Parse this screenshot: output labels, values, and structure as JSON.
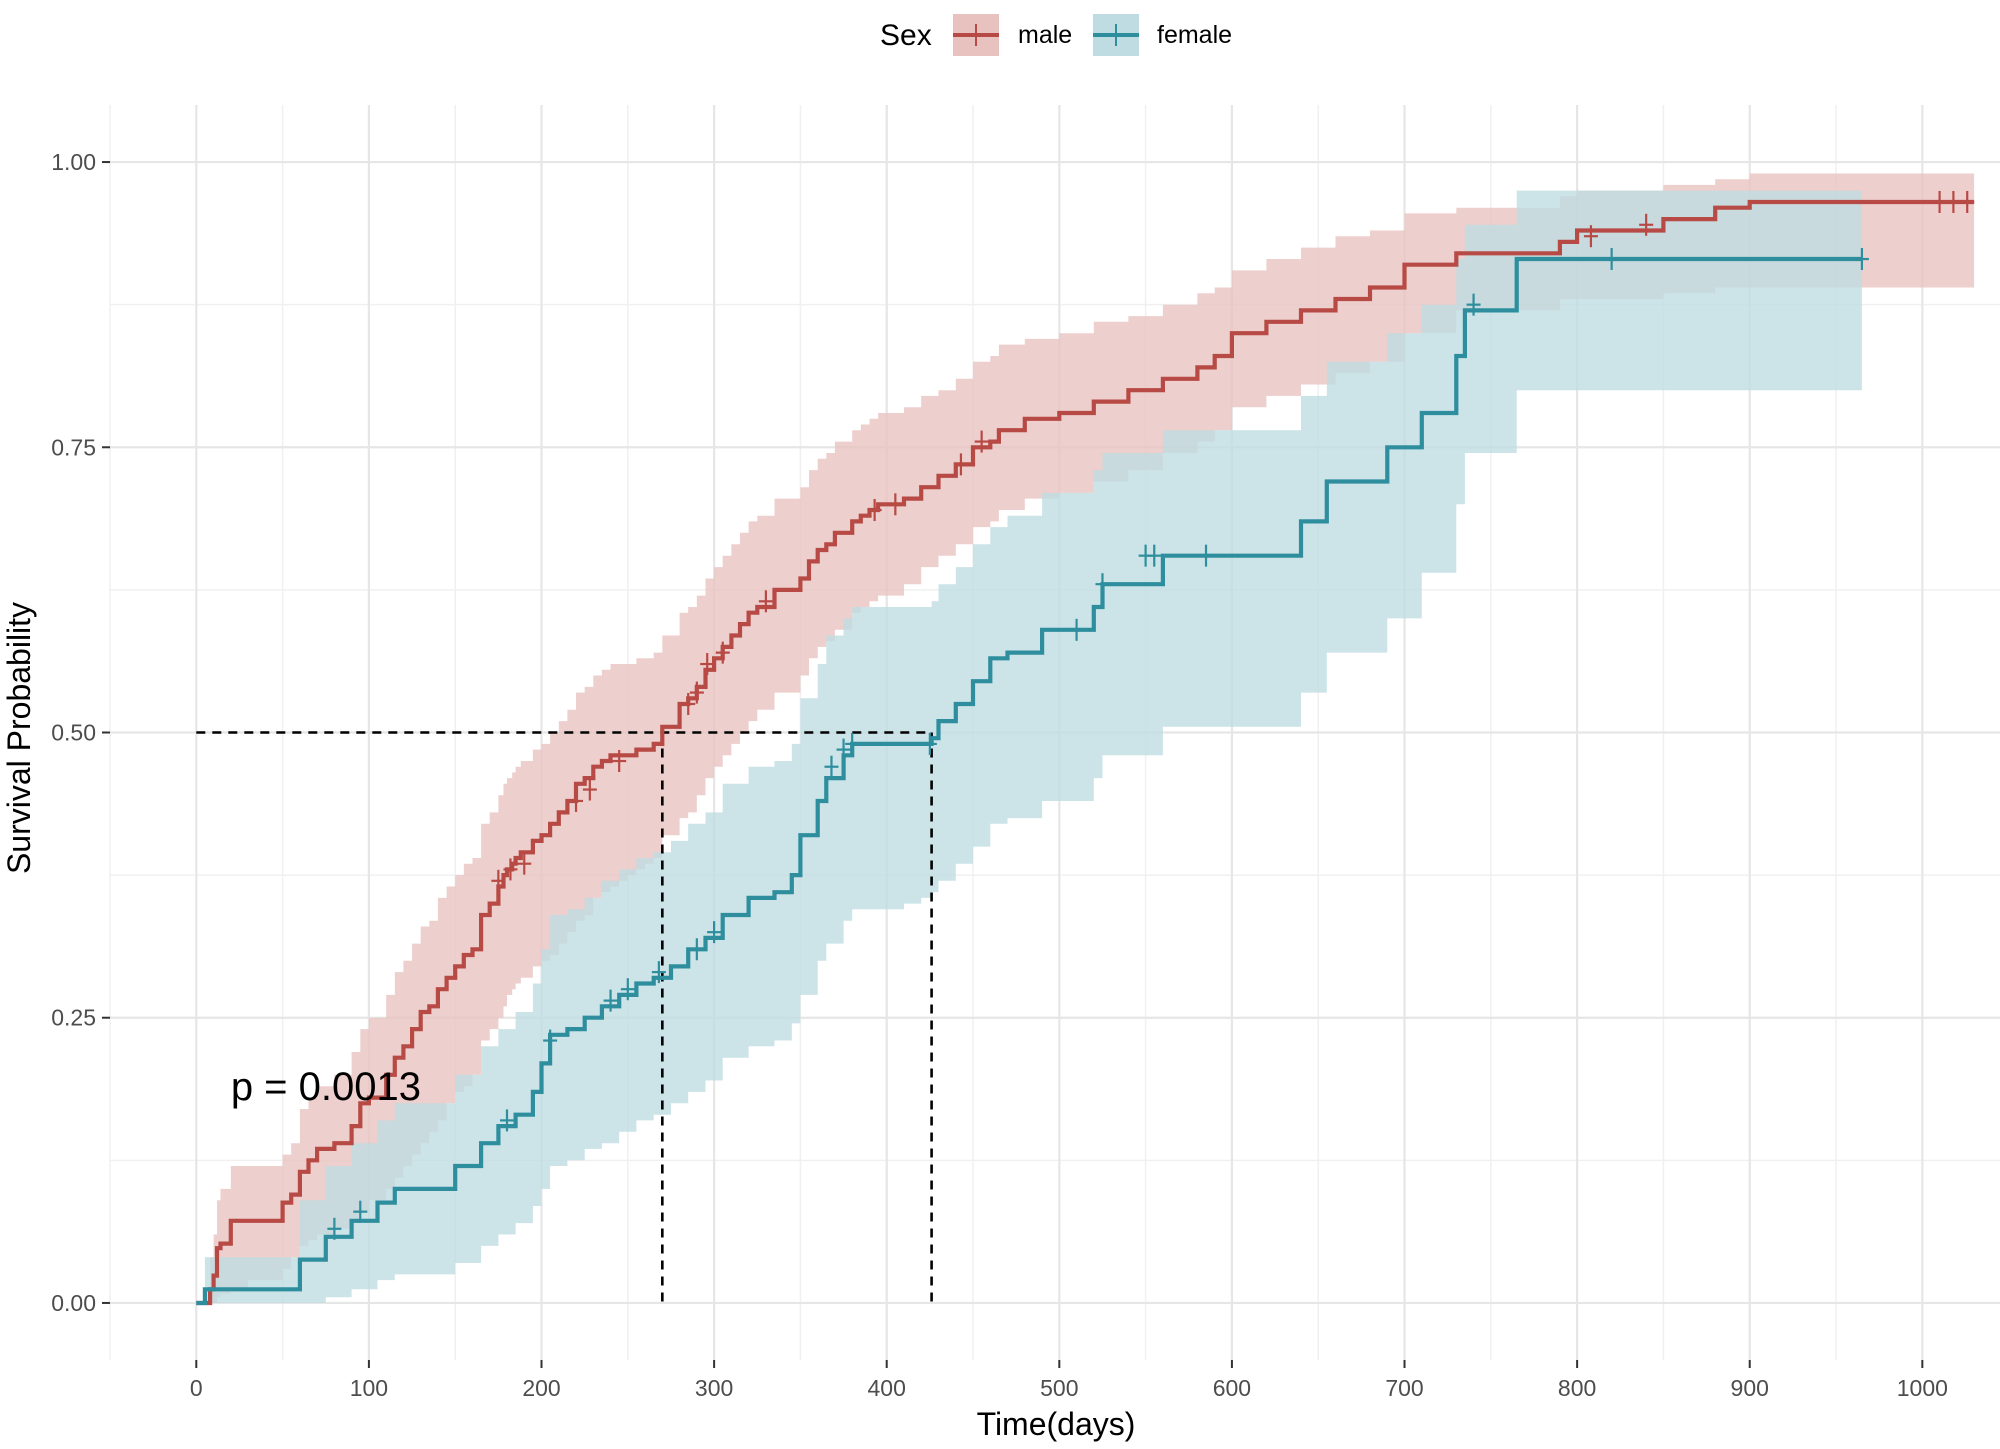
{
  "chart_data": {
    "type": "line",
    "subtype": "kaplan-meier step plot with confidence bands",
    "title": "",
    "xlabel": "Time(days)",
    "ylabel": "Survival Probability",
    "xlim": [
      -50,
      1045
    ],
    "ylim": [
      -0.05,
      1.05
    ],
    "x_ticks": [
      0,
      100,
      200,
      300,
      400,
      500,
      600,
      700,
      800,
      900,
      1000
    ],
    "y_ticks": [
      0.0,
      0.25,
      0.5,
      0.75,
      1.0
    ],
    "y_tick_labels": [
      "0.00",
      "0.25",
      "0.50",
      "0.75",
      "1.00"
    ],
    "legend": {
      "title": "Sex",
      "position": "top"
    },
    "annotation": {
      "text": "p = 0.0013",
      "x": 20,
      "y": 0.19
    },
    "median_lines": {
      "y": 0.5,
      "x_values": [
        270,
        426
      ]
    },
    "series": [
      {
        "name": "male",
        "color": "#B84A45",
        "fill": "#E8C2BF",
        "x": [
          0,
          8,
          10,
          12,
          14,
          20,
          30,
          50,
          55,
          60,
          65,
          70,
          80,
          90,
          95,
          100,
          110,
          115,
          120,
          125,
          130,
          135,
          140,
          145,
          150,
          155,
          160,
          165,
          170,
          175,
          178,
          180,
          183,
          185,
          188,
          195,
          200,
          205,
          210,
          215,
          220,
          225,
          230,
          235,
          240,
          245,
          250,
          255,
          260,
          265,
          270,
          280,
          285,
          290,
          295,
          300,
          305,
          310,
          315,
          320,
          325,
          335,
          350,
          355,
          360,
          365,
          370,
          380,
          385,
          390,
          395,
          400,
          410,
          420,
          430,
          440,
          450,
          460,
          465,
          480,
          500,
          520,
          540,
          560,
          580,
          590,
          600,
          620,
          640,
          660,
          680,
          700,
          720,
          730,
          790,
          800,
          850,
          880,
          900,
          1030
        ],
        "y": [
          0.0,
          0.012,
          0.024,
          0.048,
          0.052,
          0.072,
          0.072,
          0.088,
          0.095,
          0.115,
          0.125,
          0.135,
          0.14,
          0.155,
          0.175,
          0.18,
          0.2,
          0.215,
          0.225,
          0.24,
          0.255,
          0.26,
          0.275,
          0.285,
          0.295,
          0.305,
          0.31,
          0.34,
          0.35,
          0.365,
          0.375,
          0.38,
          0.385,
          0.39,
          0.395,
          0.405,
          0.41,
          0.42,
          0.43,
          0.44,
          0.455,
          0.46,
          0.47,
          0.475,
          0.48,
          0.48,
          0.48,
          0.485,
          0.485,
          0.49,
          0.505,
          0.525,
          0.53,
          0.54,
          0.555,
          0.565,
          0.575,
          0.585,
          0.595,
          0.605,
          0.61,
          0.625,
          0.635,
          0.65,
          0.66,
          0.665,
          0.675,
          0.685,
          0.69,
          0.695,
          0.7,
          0.7,
          0.705,
          0.715,
          0.725,
          0.735,
          0.75,
          0.755,
          0.765,
          0.775,
          0.78,
          0.79,
          0.8,
          0.81,
          0.82,
          0.83,
          0.85,
          0.86,
          0.87,
          0.88,
          0.89,
          0.91,
          0.91,
          0.92,
          0.93,
          0.94,
          0.95,
          0.96,
          0.965,
          0.965
        ],
        "ci_lower": [
          0.0,
          0.0,
          0.0,
          0.005,
          0.008,
          0.012,
          0.02,
          0.03,
          0.04,
          0.05,
          0.055,
          0.06,
          0.065,
          0.07,
          0.08,
          0.09,
          0.1,
          0.11,
          0.12,
          0.13,
          0.14,
          0.15,
          0.16,
          0.175,
          0.185,
          0.19,
          0.2,
          0.23,
          0.24,
          0.25,
          0.26,
          0.27,
          0.275,
          0.28,
          0.285,
          0.295,
          0.3,
          0.305,
          0.315,
          0.325,
          0.335,
          0.34,
          0.355,
          0.36,
          0.365,
          0.37,
          0.375,
          0.38,
          0.385,
          0.39,
          0.41,
          0.425,
          0.43,
          0.445,
          0.46,
          0.47,
          0.48,
          0.49,
          0.5,
          0.51,
          0.52,
          0.535,
          0.55,
          0.565,
          0.575,
          0.58,
          0.59,
          0.605,
          0.61,
          0.615,
          0.62,
          0.62,
          0.63,
          0.645,
          0.655,
          0.665,
          0.68,
          0.685,
          0.695,
          0.705,
          0.71,
          0.72,
          0.73,
          0.745,
          0.755,
          0.765,
          0.785,
          0.795,
          0.805,
          0.815,
          0.825,
          0.85,
          0.85,
          0.87,
          0.88,
          0.88,
          0.885,
          0.89,
          0.89,
          0.89
        ],
        "ci_upper": [
          0.0,
          0.04,
          0.06,
          0.09,
          0.1,
          0.12,
          0.12,
          0.13,
          0.14,
          0.17,
          0.18,
          0.19,
          0.2,
          0.22,
          0.24,
          0.25,
          0.27,
          0.29,
          0.3,
          0.315,
          0.33,
          0.335,
          0.355,
          0.365,
          0.375,
          0.385,
          0.39,
          0.42,
          0.43,
          0.445,
          0.455,
          0.46,
          0.465,
          0.47,
          0.475,
          0.485,
          0.49,
          0.5,
          0.51,
          0.52,
          0.535,
          0.54,
          0.55,
          0.555,
          0.56,
          0.56,
          0.56,
          0.565,
          0.565,
          0.57,
          0.585,
          0.605,
          0.61,
          0.62,
          0.635,
          0.645,
          0.655,
          0.665,
          0.675,
          0.685,
          0.69,
          0.705,
          0.715,
          0.73,
          0.74,
          0.745,
          0.755,
          0.765,
          0.77,
          0.775,
          0.78,
          0.78,
          0.785,
          0.795,
          0.8,
          0.81,
          0.825,
          0.83,
          0.84,
          0.845,
          0.85,
          0.86,
          0.865,
          0.875,
          0.885,
          0.89,
          0.905,
          0.915,
          0.925,
          0.935,
          0.94,
          0.955,
          0.955,
          0.96,
          0.97,
          0.975,
          0.98,
          0.985,
          0.99,
          0.99
        ],
        "censor_x": [
          175,
          182,
          190,
          220,
          228,
          245,
          285,
          290,
          296,
          305,
          330,
          393,
          405,
          443,
          455,
          808,
          840,
          1010,
          1018,
          1026
        ],
        "censor_y": [
          0.37,
          0.38,
          0.385,
          0.44,
          0.45,
          0.475,
          0.525,
          0.535,
          0.56,
          0.57,
          0.615,
          0.695,
          0.7,
          0.735,
          0.755,
          0.935,
          0.945,
          0.965,
          0.965,
          0.965
        ]
      },
      {
        "name": "female",
        "color": "#2E8E9E",
        "fill": "#BEDCE1",
        "x": [
          0,
          5,
          60,
          75,
          90,
          105,
          115,
          130,
          150,
          165,
          175,
          185,
          195,
          200,
          205,
          215,
          225,
          235,
          245,
          255,
          265,
          275,
          285,
          295,
          305,
          320,
          335,
          345,
          350,
          360,
          365,
          375,
          380,
          390,
          400,
          410,
          420,
          426,
          430,
          440,
          450,
          460,
          470,
          490,
          510,
          520,
          525,
          540,
          560,
          600,
          640,
          655,
          690,
          710,
          730,
          735,
          765,
          800,
          965
        ],
        "y": [
          0.0,
          0.012,
          0.038,
          0.058,
          0.072,
          0.088,
          0.1,
          0.1,
          0.12,
          0.14,
          0.155,
          0.165,
          0.185,
          0.21,
          0.235,
          0.24,
          0.25,
          0.26,
          0.27,
          0.28,
          0.285,
          0.295,
          0.31,
          0.32,
          0.34,
          0.355,
          0.36,
          0.375,
          0.41,
          0.44,
          0.46,
          0.48,
          0.49,
          0.49,
          0.49,
          0.49,
          0.49,
          0.495,
          0.51,
          0.525,
          0.545,
          0.565,
          0.57,
          0.59,
          0.59,
          0.61,
          0.63,
          0.63,
          0.655,
          0.655,
          0.685,
          0.72,
          0.75,
          0.78,
          0.83,
          0.87,
          0.915,
          0.915,
          0.915
        ],
        "ci_lower": [
          0.0,
          0.0,
          0.0,
          0.005,
          0.012,
          0.02,
          0.025,
          0.025,
          0.035,
          0.05,
          0.06,
          0.07,
          0.085,
          0.1,
          0.12,
          0.125,
          0.135,
          0.14,
          0.15,
          0.16,
          0.165,
          0.175,
          0.185,
          0.195,
          0.215,
          0.225,
          0.23,
          0.245,
          0.27,
          0.3,
          0.315,
          0.335,
          0.345,
          0.345,
          0.345,
          0.35,
          0.355,
          0.36,
          0.37,
          0.385,
          0.4,
          0.42,
          0.425,
          0.44,
          0.44,
          0.46,
          0.48,
          0.48,
          0.505,
          0.505,
          0.535,
          0.57,
          0.6,
          0.64,
          0.7,
          0.745,
          0.8,
          0.8,
          0.8
        ],
        "ci_upper": [
          0.0,
          0.04,
          0.09,
          0.12,
          0.14,
          0.16,
          0.175,
          0.175,
          0.2,
          0.225,
          0.24,
          0.255,
          0.28,
          0.31,
          0.34,
          0.345,
          0.355,
          0.37,
          0.38,
          0.39,
          0.395,
          0.405,
          0.42,
          0.43,
          0.455,
          0.47,
          0.475,
          0.49,
          0.53,
          0.56,
          0.585,
          0.6,
          0.61,
          0.61,
          0.61,
          0.61,
          0.61,
          0.615,
          0.63,
          0.645,
          0.665,
          0.68,
          0.69,
          0.71,
          0.71,
          0.73,
          0.745,
          0.745,
          0.765,
          0.765,
          0.795,
          0.825,
          0.85,
          0.875,
          0.915,
          0.945,
          0.975,
          0.975,
          0.975
        ],
        "censor_x": [
          80,
          95,
          180,
          205,
          240,
          250,
          268,
          290,
          300,
          368,
          375,
          380,
          425,
          510,
          525,
          550,
          555,
          585,
          740,
          820,
          965
        ],
        "censor_y": [
          0.065,
          0.08,
          0.16,
          0.23,
          0.265,
          0.275,
          0.29,
          0.31,
          0.325,
          0.47,
          0.485,
          0.49,
          0.49,
          0.59,
          0.63,
          0.655,
          0.655,
          0.655,
          0.875,
          0.915,
          0.915
        ]
      }
    ]
  }
}
